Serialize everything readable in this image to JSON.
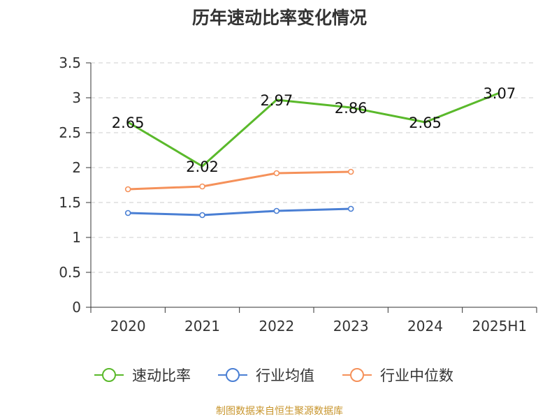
{
  "title": "历年速动比率变化情况",
  "source": "制图数据来自恒生聚源数据库",
  "chart_data": {
    "type": "line",
    "categories": [
      "2020",
      "2021",
      "2022",
      "2023",
      "2024",
      "2025H1"
    ],
    "ylim": [
      0,
      3.5
    ],
    "yticks": [
      0,
      0.5,
      1,
      1.5,
      2,
      2.5,
      3,
      3.5
    ],
    "ytick_labels": [
      "0",
      "0.5",
      "1",
      "1.5",
      "2",
      "2.5",
      "3",
      "3.5"
    ],
    "grid": true,
    "legend_position": "bottom",
    "series": [
      {
        "name": "速动比率",
        "color": "#5ab92b",
        "values": [
          2.65,
          2.02,
          2.97,
          2.86,
          2.65,
          3.07
        ],
        "labels": [
          "2.65",
          "2.02",
          "2.97",
          "2.86",
          "2.65",
          "3.07"
        ],
        "show_markers": false
      },
      {
        "name": "行业均值",
        "color": "#4a7fd4",
        "values": [
          1.35,
          1.32,
          1.38,
          1.41,
          null,
          null
        ],
        "show_markers": true
      },
      {
        "name": "行业中位数",
        "color": "#f5915a",
        "values": [
          1.69,
          1.73,
          1.92,
          1.94,
          null,
          null
        ],
        "show_markers": true
      }
    ]
  }
}
